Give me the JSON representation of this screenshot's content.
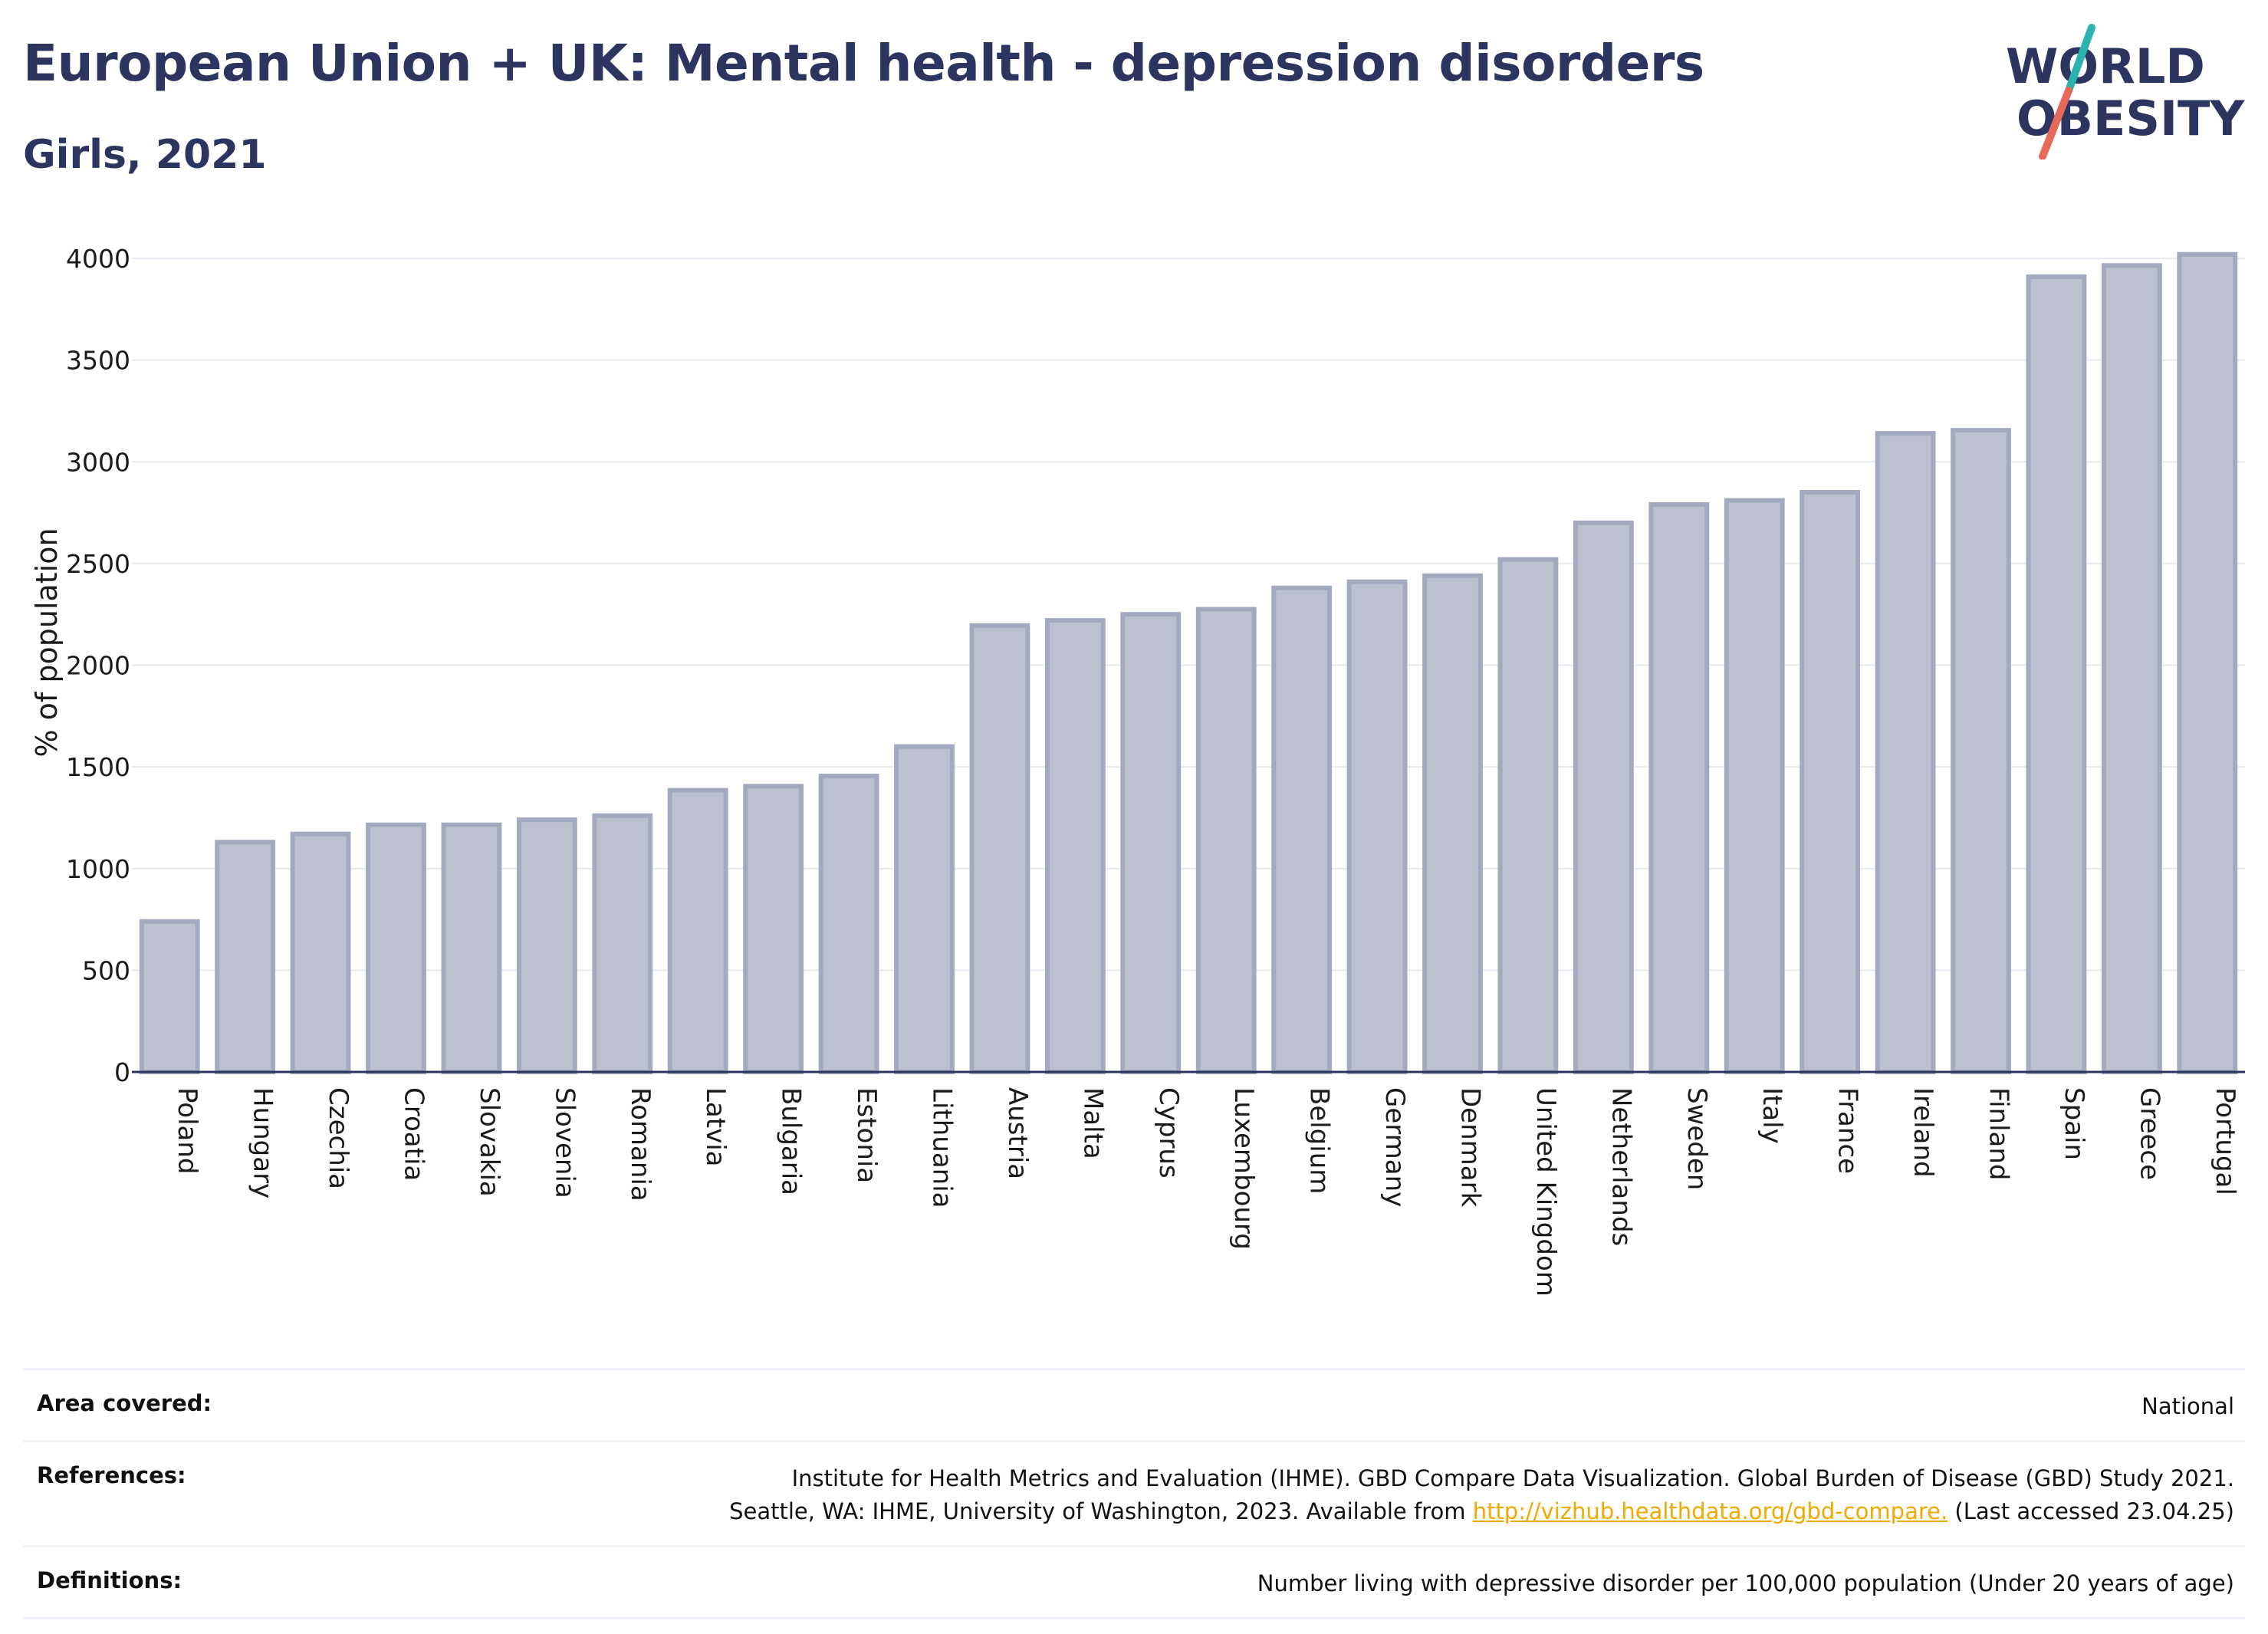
{
  "header": {
    "title": "European Union + UK: Mental health - depression disorders",
    "subtitle": "Girls, 2021"
  },
  "logo": {
    "line1": "WORLD",
    "line2": "OBESITY",
    "colors": {
      "text": "#2b3560",
      "slash_top": "#2bb3b1",
      "slash_bottom": "#e8695a"
    }
  },
  "chart_data": {
    "type": "bar",
    "ylabel": "% of population",
    "ylim": [
      0,
      4000
    ],
    "yticks": [
      0,
      500,
      1000,
      1500,
      2000,
      2500,
      3000,
      3500,
      4000
    ],
    "grid": true,
    "bar_color": "#bcc0cf",
    "bar_edge_color": "#a3a9be",
    "categories": [
      "Poland",
      "Hungary",
      "Czechia",
      "Croatia",
      "Slovakia",
      "Slovenia",
      "Romania",
      "Latvia",
      "Bulgaria",
      "Estonia",
      "Lithuania",
      "Austria",
      "Malta",
      "Cyprus",
      "Luxembourg",
      "Belgium",
      "Germany",
      "Denmark",
      "United Kingdom",
      "Netherlands",
      "Sweden",
      "Italy",
      "France",
      "Ireland",
      "Finland",
      "Spain",
      "Greece",
      "Portugal"
    ],
    "values": [
      740,
      1130,
      1170,
      1215,
      1215,
      1240,
      1260,
      1385,
      1405,
      1455,
      1600,
      2195,
      2220,
      2250,
      2275,
      2380,
      2410,
      2440,
      2520,
      2700,
      2790,
      2810,
      2850,
      3140,
      3155,
      3910,
      3965,
      4020
    ]
  },
  "info": {
    "area_label": "Area covered:",
    "area_value": "National",
    "references_label": "References:",
    "references_line1": "Institute for Health Metrics and Evaluation (IHME). GBD Compare Data Visualization. Global Burden of Disease (GBD) Study 2021.",
    "references_line2_pre": "Seattle, WA: IHME, University of Washington, 2023. Available from ",
    "references_link": "http://vizhub.healthdata.org/gbd-compare.",
    "references_line2_post": " (Last accessed 23.04.25)",
    "definitions_label": "Definitions:",
    "definitions_value": "Number living with depressive disorder per 100,000 population (Under 20 years of age)"
  }
}
